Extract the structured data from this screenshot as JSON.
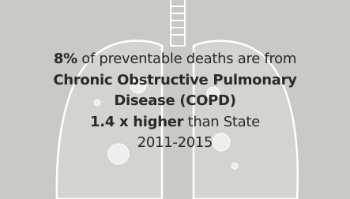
{
  "headline": {
    "bold": "8%",
    "rest": "of preventable deaths are from"
  },
  "disease": {
    "line1": "Chronic Obstructive Pulmonary",
    "line2": "Disease (COPD)"
  },
  "comparison": {
    "bold": "1.4 x higher",
    "rest": "than State"
  },
  "period": "2011-2015"
}
